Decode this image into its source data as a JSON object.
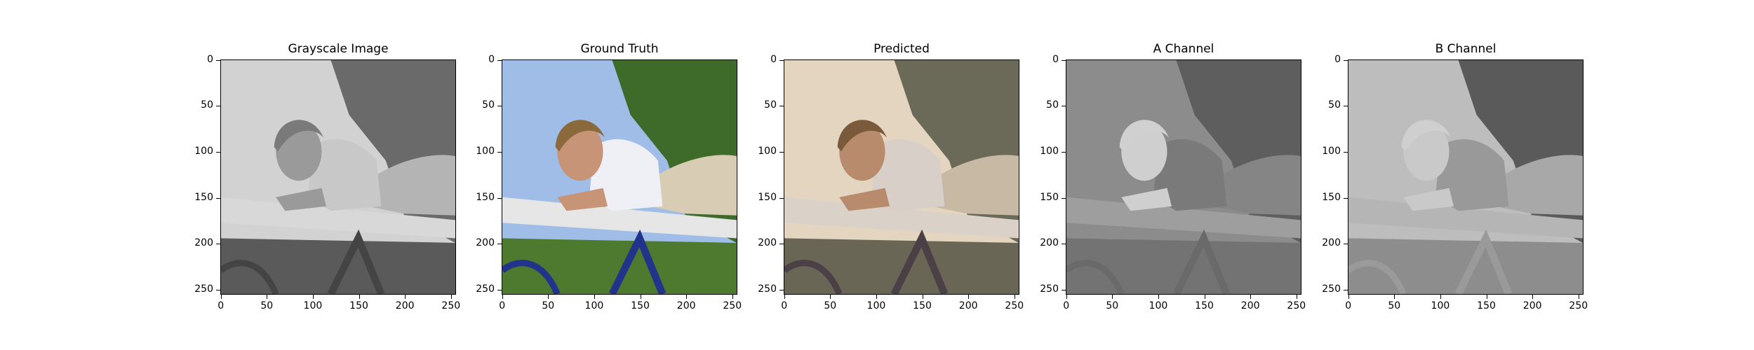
{
  "panels": [
    {
      "title": "Grayscale Image",
      "scheme": "gray"
    },
    {
      "title": "Ground Truth",
      "scheme": "truth"
    },
    {
      "title": "Predicted",
      "scheme": "pred"
    },
    {
      "title": "A Channel",
      "scheme": "achan"
    },
    {
      "title": "B Channel",
      "scheme": "bchan"
    }
  ],
  "ticks": {
    "y": [
      "0",
      "50",
      "100",
      "150",
      "200",
      "250"
    ],
    "x": [
      "0",
      "50",
      "100",
      "150",
      "200",
      "250"
    ]
  },
  "colors": {
    "gray": {
      "sky": "#d2d2d2",
      "tree": "#6a6a6a",
      "hair": "#7a7a7a",
      "skin": "#9a9a9a",
      "shirt": "#c8c8c8",
      "pants": "#b4b4b4",
      "bar": "#d8d8d8",
      "frame": "#444444",
      "ground": "#5a5a5a"
    },
    "truth": {
      "sky": "#9fbde6",
      "tree": "#3f6b2a",
      "hair": "#8a6a3c",
      "skin": "#c89478",
      "shirt": "#eef0f6",
      "pants": "#d9ccb4",
      "bar": "#e6e6e6",
      "frame": "#22338c",
      "ground": "#4d7a2e"
    },
    "pred": {
      "sky": "#e3d5bf",
      "tree": "#6b6a58",
      "hair": "#7a5a3a",
      "skin": "#b88b6c",
      "shirt": "#d8d0c8",
      "pants": "#c7b9a3",
      "bar": "#dad2c8",
      "frame": "#4a4046",
      "ground": "#6a6656"
    },
    "achan": {
      "sky": "#8c8c8c",
      "tree": "#5e5e5e",
      "hair": "#d0d0d0",
      "skin": "#cfcfcf",
      "shirt": "#7a7a7a",
      "pants": "#858585",
      "bar": "#9e9e9e",
      "frame": "#6a6a6a",
      "ground": "#737373"
    },
    "bchan": {
      "sky": "#bdbdbd",
      "tree": "#5a5a5a",
      "hair": "#cfcfcf",
      "skin": "#c9c9c9",
      "shirt": "#999999",
      "pants": "#a8a8a8",
      "bar": "#b5b5b5",
      "frame": "#9a9a9a",
      "ground": "#8d8d8d"
    }
  }
}
